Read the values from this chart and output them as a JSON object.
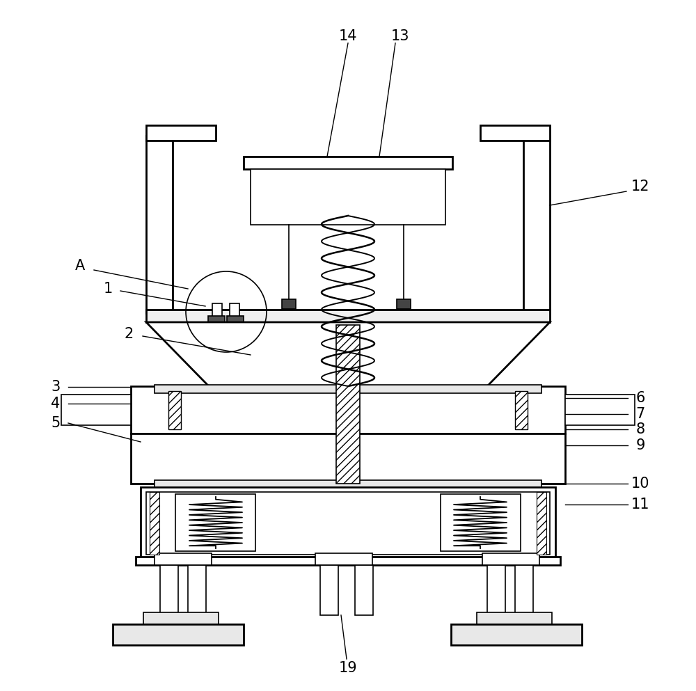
{
  "bg_color": "#ffffff",
  "line_color": "#000000",
  "lw": 1.2,
  "lwt": 2.0,
  "fontsize": 15
}
